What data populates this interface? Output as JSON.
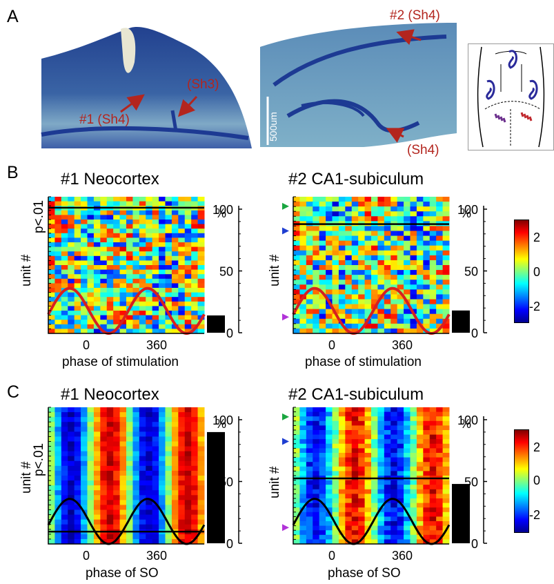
{
  "panel_a": {
    "letter": "A",
    "image1": {
      "labels": [
        "#1 (Sh4)",
        "(Sh3)"
      ]
    },
    "image2": {
      "labels": [
        "#2 (Sh4)",
        "(Sh4)"
      ],
      "scalebar_label": "500um"
    },
    "colors": {
      "tissue_dark": "#1d3a93",
      "tissue_light": "#6f9fc0",
      "arrow": "#b3251e",
      "probe_red": "#c0282d",
      "probe_purple": "#6b2e8c"
    }
  },
  "panel_b": {
    "letter": "B",
    "left": {
      "title": "#1 Neocortex",
      "xlabel": "phase of stimulation",
      "ylabel": "unit #",
      "sig_label": "p<.01",
      "x_ticks": [
        "0",
        "360"
      ],
      "hist_unit": "%",
      "hist_ticks": [
        "100",
        "50",
        "0"
      ],
      "hist_value": 14,
      "curve_color": "#d62020"
    },
    "right": {
      "title": "#2 CA1-subiculum",
      "xlabel": "phase of stimulation",
      "ylabel": "unit #",
      "x_ticks": [
        "0",
        "360"
      ],
      "hist_unit": "%",
      "hist_ticks": [
        "100",
        "50",
        "0"
      ],
      "hist_value": 18,
      "curve_color": "#d62020",
      "marker_colors": [
        "#1aa640",
        "#1f3ed1",
        "#b133d8"
      ]
    },
    "colorbar_ticks": [
      "2",
      "0",
      "-2"
    ]
  },
  "panel_c": {
    "letter": "C",
    "left": {
      "title": "#1 Neocortex",
      "xlabel": "phase of SO",
      "ylabel": "unit #",
      "sig_label": "p<.01",
      "x_ticks": [
        "0",
        "360"
      ],
      "hist_unit": "%",
      "hist_ticks": [
        "100",
        "50",
        "0"
      ],
      "hist_value": 90,
      "curve_color": "#000000"
    },
    "right": {
      "title": "#2 CA1-subiculum",
      "xlabel": "phase of SO",
      "ylabel": "unit #",
      "x_ticks": [
        "0",
        "360"
      ],
      "hist_unit": "%",
      "hist_ticks": [
        "100",
        "50",
        "0"
      ],
      "hist_value": 48,
      "curve_color": "#000000",
      "marker_colors": [
        "#1aa640",
        "#1f3ed1",
        "#b133d8"
      ]
    },
    "colorbar_ticks": [
      "2",
      "0",
      "-2"
    ]
  }
}
